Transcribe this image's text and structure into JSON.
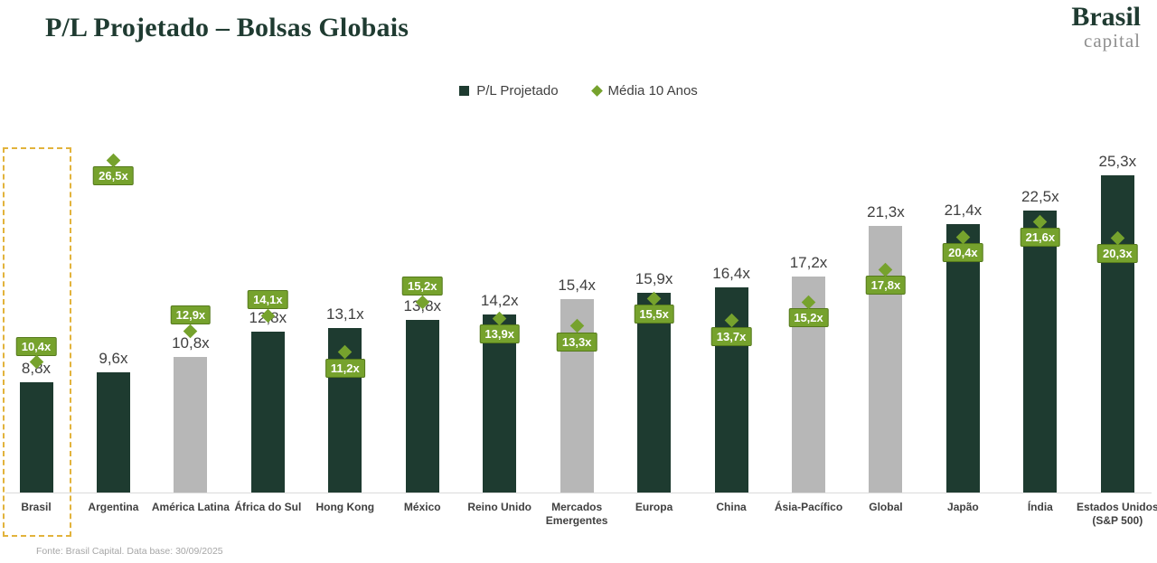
{
  "header": {
    "title": "P/L Projetado – Bolsas Globais",
    "logo_line1": "Brasil",
    "logo_line2": "capital"
  },
  "legend": {
    "series1_label": "P/L Projetado",
    "series2_label": "Média 10 Anos"
  },
  "footer": {
    "source": "Fonte: Brasil Capital. Data base: 30/09/2025"
  },
  "colors": {
    "bar_dark_green": "#1e3b30",
    "bar_gray": "#b7b7b7",
    "accent_olive_green": "#76a22d",
    "accent_olive_border": "#55791c",
    "highlight_dashed_gold": "#e2b33c",
    "text_dark": "#404040",
    "footer_gray": "#a6a6a6",
    "logo_green": "#1f3b31",
    "logo_gray": "#8f8f8f"
  },
  "chart_data": {
    "type": "bar",
    "title": "P/L Projetado – Bolsas Globais",
    "value_suffix": "x",
    "decimal_separator": ",",
    "ylim": [
      0,
      27.5
    ],
    "grid": false,
    "legend_position": "top-center",
    "categories": [
      "Brasil",
      "Argentina",
      "América Latina",
      "África do Sul",
      "Hong Kong",
      "México",
      "Reino Unido",
      "Mercados Emergentes",
      "Europa",
      "China",
      "Ásia-Pacífico",
      "Global",
      "Japão",
      "Índia",
      "Estados Unidos (S&P 500)"
    ],
    "category_lines": [
      [
        "Brasil"
      ],
      [
        "Argentina"
      ],
      [
        "América Latina"
      ],
      [
        "África do Sul"
      ],
      [
        "Hong Kong"
      ],
      [
        "México"
      ],
      [
        "Reino Unido"
      ],
      [
        "Mercados",
        "Emergentes"
      ],
      [
        "Europa"
      ],
      [
        "China"
      ],
      [
        "Ásia-Pacífico"
      ],
      [
        "Global"
      ],
      [
        "Japão"
      ],
      [
        "Índia"
      ],
      [
        "Estados Unidos",
        "(S&P 500)"
      ]
    ],
    "series": [
      {
        "name": "P/L Projetado",
        "marker": "bar",
        "values": [
          8.8,
          9.6,
          10.8,
          12.8,
          13.1,
          13.8,
          14.2,
          15.4,
          15.9,
          16.4,
          17.2,
          21.3,
          21.4,
          22.5,
          25.3
        ]
      },
      {
        "name": "Média 10 Anos",
        "marker": "diamond",
        "values": [
          10.4,
          26.5,
          12.9,
          14.1,
          11.2,
          15.2,
          13.9,
          13.3,
          15.5,
          13.7,
          15.2,
          17.8,
          20.4,
          21.6,
          20.3
        ]
      }
    ],
    "gray_bar_categories": [
      "América Latina",
      "Mercados Emergentes",
      "Ásia-Pacífico",
      "Global"
    ],
    "highlighted_category": "Brasil",
    "media_label_above_categories": [
      "Brasil",
      "América Latina",
      "África do Sul",
      "México"
    ]
  }
}
